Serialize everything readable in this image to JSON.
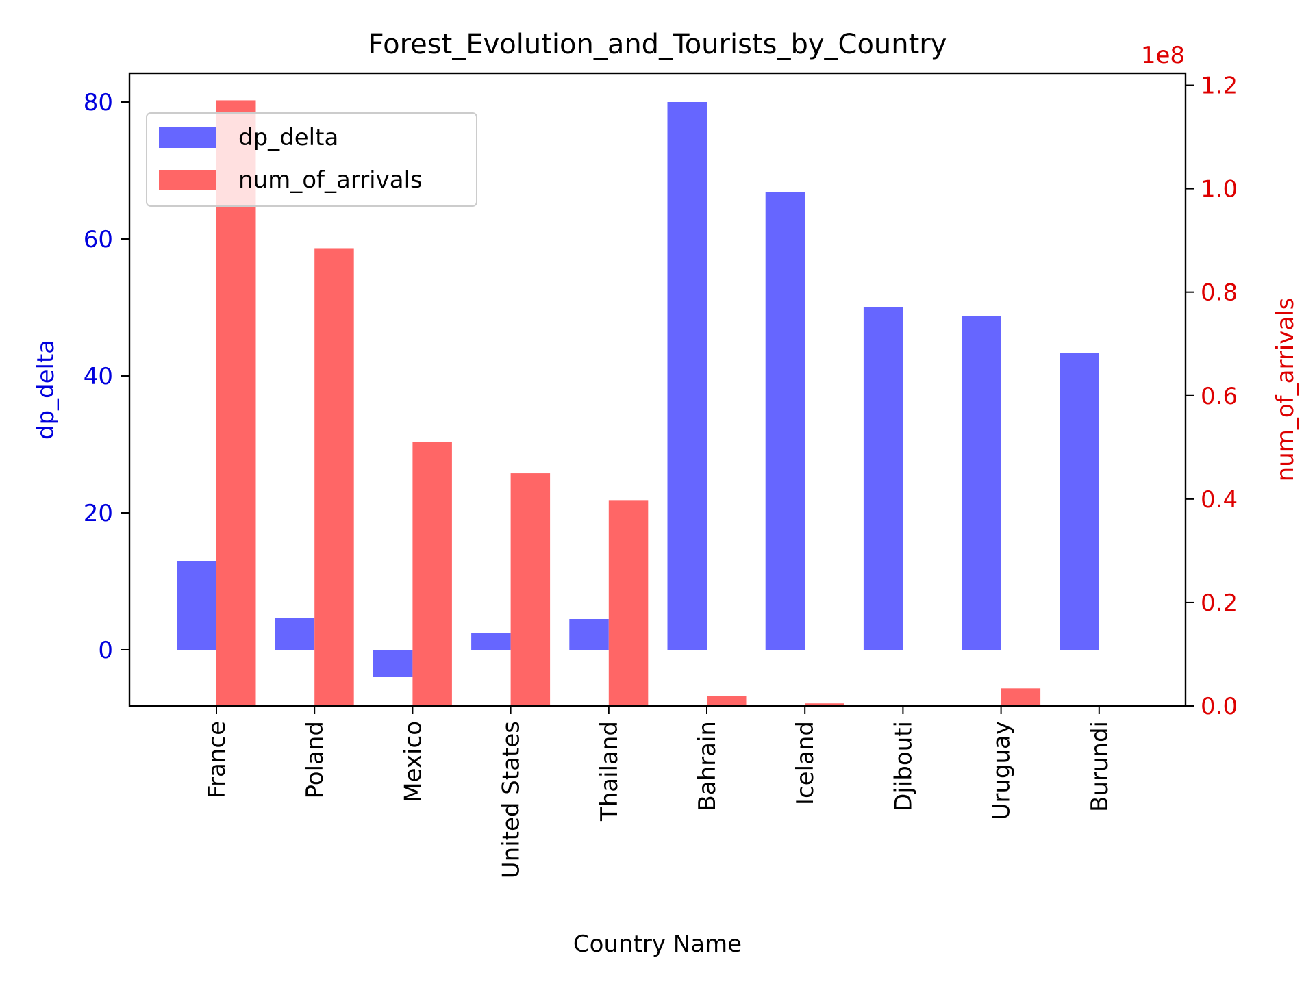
{
  "chart_data": {
    "type": "bar",
    "title": "Forest_Evolution_and_Tourists_by_Country",
    "xlabel": "Country Name",
    "ylabel_left": "dp_delta",
    "ylabel_right": "num_of_arrivals",
    "right_axis_multiplier": "1e8",
    "categories": [
      "France",
      "Poland",
      "Mexico",
      "United States",
      "Thailand",
      "Bahrain",
      "Iceland",
      "Djibouti",
      "Uruguay",
      "Burundi"
    ],
    "series": [
      {
        "name": "dp_delta",
        "axis": "left",
        "color": "#6666ff",
        "values": [
          12.9,
          4.6,
          -4.0,
          2.4,
          4.5,
          80.0,
          66.8,
          50.0,
          48.7,
          43.4
        ]
      },
      {
        "name": "num_of_arrivals",
        "axis": "right",
        "color": "#ff6666",
        "values": [
          117100000,
          88500000,
          51100000,
          45000000,
          39800000,
          1900000,
          500000,
          0,
          3400000,
          200000
        ]
      }
    ],
    "ylim_left": [
      -8.2,
      84.2
    ],
    "ylim_right": [
      0,
      1.2232
    ],
    "yticks_left": [
      0,
      20,
      40,
      60,
      80
    ],
    "yticks_right": [
      "0.0",
      "0.2",
      "0.4",
      "0.6",
      "0.8",
      "1.0",
      "1.2"
    ],
    "legend_position": "top-left",
    "grid": false,
    "colors": {
      "left_axis": "#0000dd",
      "right_axis": "#dd0000",
      "frame": "#000000"
    }
  }
}
